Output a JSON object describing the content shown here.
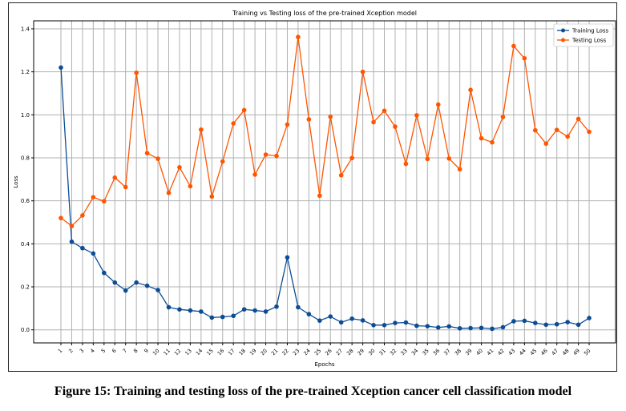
{
  "chart_data": {
    "type": "line",
    "title": "Training vs Testing loss of the pre-trained Xception model",
    "xlabel": "Epochs",
    "ylabel": "Loss",
    "ylim": [
      -0.06,
      1.44
    ],
    "yticks": [
      "0.0",
      "0.2",
      "0.4",
      "0.6",
      "0.8",
      "1.0",
      "1.2",
      "1.4"
    ],
    "ytick_values": [
      0,
      0.2,
      0.4,
      0.6,
      0.8,
      1.0,
      1.2,
      1.4
    ],
    "x": [
      1,
      2,
      3,
      4,
      5,
      6,
      7,
      8,
      9,
      10,
      11,
      12,
      13,
      14,
      15,
      16,
      17,
      18,
      19,
      20,
      21,
      22,
      23,
      24,
      25,
      26,
      27,
      28,
      29,
      30,
      31,
      32,
      33,
      34,
      35,
      36,
      37,
      38,
      39,
      40,
      41,
      42,
      43,
      44,
      45,
      46,
      47,
      48,
      49,
      50
    ],
    "grid": true,
    "legend_position": "top-right",
    "series": [
      {
        "name": "Training Loss",
        "color": "#0b4d94",
        "values": [
          1.22,
          0.41,
          0.38,
          0.355,
          0.265,
          0.22,
          0.183,
          0.22,
          0.205,
          0.185,
          0.105,
          0.095,
          0.09,
          0.085,
          0.057,
          0.06,
          0.065,
          0.095,
          0.09,
          0.085,
          0.108,
          0.337,
          0.105,
          0.073,
          0.043,
          0.062,
          0.035,
          0.052,
          0.044,
          0.022,
          0.022,
          0.032,
          0.034,
          0.019,
          0.017,
          0.011,
          0.016,
          0.007,
          0.008,
          0.009,
          0.005,
          0.012,
          0.04,
          0.042,
          0.032,
          0.024,
          0.026,
          0.036,
          0.024,
          0.055
        ]
      },
      {
        "name": "Testing Loss",
        "color": "#ff5500",
        "values": [
          0.52,
          0.483,
          0.532,
          0.617,
          0.598,
          0.708,
          0.664,
          1.196,
          0.822,
          0.796,
          0.637,
          0.756,
          0.668,
          0.931,
          0.62,
          0.783,
          0.96,
          1.022,
          0.722,
          0.815,
          0.809,
          0.955,
          1.362,
          0.979,
          0.624,
          0.991,
          0.719,
          0.799,
          1.2,
          0.966,
          1.019,
          0.945,
          0.772,
          0.998,
          0.795,
          1.048,
          0.797,
          0.747,
          1.116,
          0.891,
          0.872,
          0.99,
          1.32,
          1.263,
          0.928,
          0.866,
          0.93,
          0.899,
          0.981,
          0.921
        ]
      }
    ]
  },
  "caption": "Figure 15: Training and testing loss of the pre-trained Xception cancer cell classification  model"
}
